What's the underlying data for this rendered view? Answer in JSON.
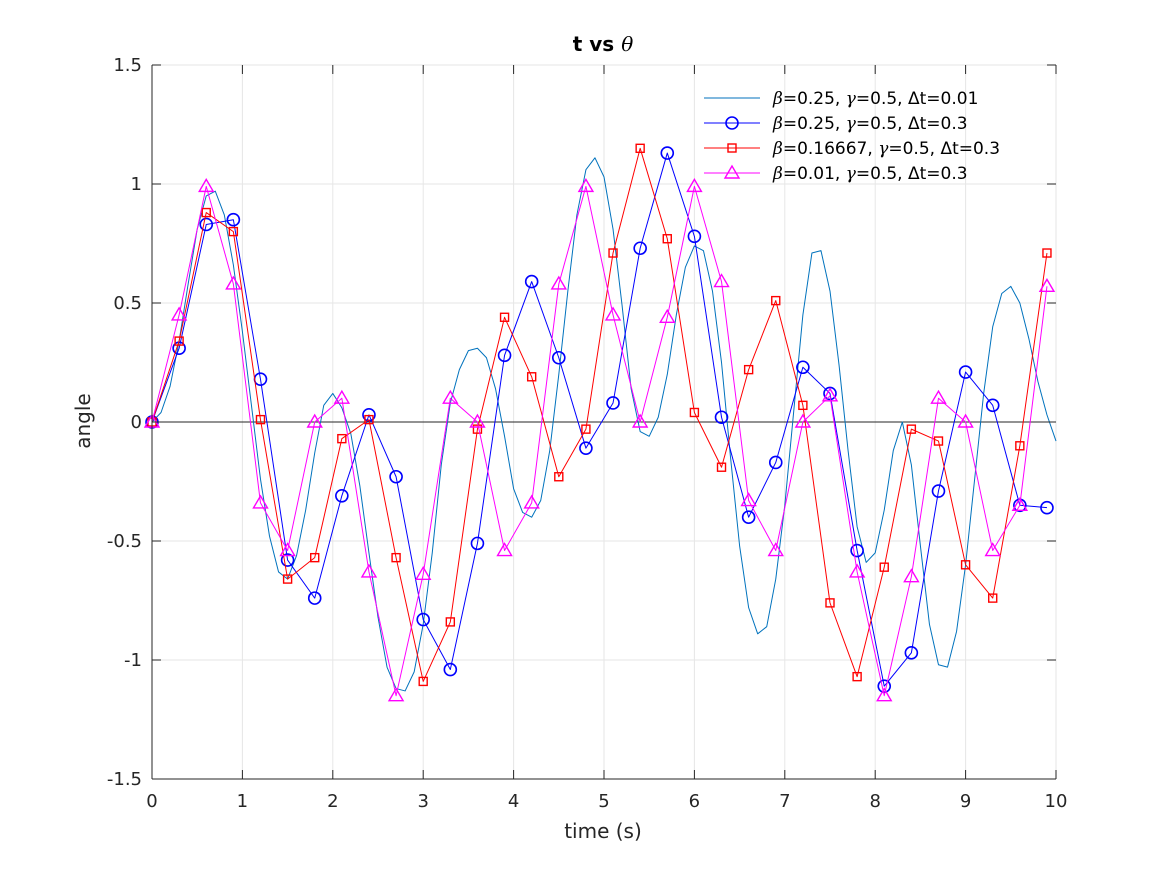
{
  "chart_data": {
    "type": "line",
    "title": "t vs θ",
    "title_parts": {
      "main": "t vs ",
      "symbol": "θ"
    },
    "xlabel": "time (s)",
    "ylabel": "angle",
    "xlim": [
      0,
      10
    ],
    "ylim": [
      -1.5,
      1.5
    ],
    "xticks": [
      0,
      1,
      2,
      3,
      4,
      5,
      6,
      7,
      8,
      9,
      10
    ],
    "xtick_labels": [
      "0",
      "1",
      "2",
      "3",
      "4",
      "5",
      "6",
      "7",
      "8",
      "9",
      "10"
    ],
    "yticks": [
      -1.5,
      -1,
      -0.5,
      0,
      0.5,
      1,
      1.5
    ],
    "ytick_labels": [
      "-1.5",
      "-1",
      "-0.5",
      "0",
      "0.5",
      "1",
      "1.5"
    ],
    "grid": true,
    "legend_position": "top-right",
    "zero_line": true,
    "series": [
      {
        "name": "β=0.25, γ=0.5, Δt=0.01",
        "legend_parts": [
          {
            "sym": "β"
          },
          {
            "txt": "=0.25, "
          },
          {
            "sym": "γ"
          },
          {
            "txt": "=0.5, "
          },
          {
            "txt": "Δt=0.01"
          }
        ],
        "color": "#0072BD",
        "marker": "none",
        "line_width": 1,
        "x": [
          0,
          0.1,
          0.2,
          0.3,
          0.4,
          0.5,
          0.6,
          0.7,
          0.8,
          0.9,
          1.0,
          1.1,
          1.2,
          1.3,
          1.4,
          1.5,
          1.6,
          1.7,
          1.8,
          1.9,
          2.0,
          2.1,
          2.2,
          2.3,
          2.4,
          2.5,
          2.6,
          2.7,
          2.8,
          2.9,
          3.0,
          3.1,
          3.2,
          3.3,
          3.4,
          3.5,
          3.6,
          3.7,
          3.8,
          3.9,
          4.0,
          4.1,
          4.2,
          4.3,
          4.4,
          4.5,
          4.6,
          4.7,
          4.8,
          4.9,
          5.0,
          5.1,
          5.2,
          5.3,
          5.4,
          5.5,
          5.6,
          5.7,
          5.8,
          5.9,
          6.0,
          6.1,
          6.2,
          6.3,
          6.4,
          6.5,
          6.6,
          6.7,
          6.8,
          6.9,
          7.0,
          7.1,
          7.2,
          7.3,
          7.4,
          7.5,
          7.6,
          7.7,
          7.8,
          7.9,
          8.0,
          8.1,
          8.2,
          8.3,
          8.4,
          8.5,
          8.6,
          8.7,
          8.8,
          8.9,
          9.0,
          9.1,
          9.2,
          9.3,
          9.4,
          9.5,
          9.6,
          9.7,
          9.8,
          9.9,
          10.0
        ],
        "y": [
          0,
          0.04,
          0.15,
          0.34,
          0.58,
          0.81,
          0.95,
          0.97,
          0.87,
          0.66,
          0.38,
          0.07,
          -0.24,
          -0.48,
          -0.63,
          -0.66,
          -0.56,
          -0.37,
          -0.13,
          0.07,
          0.12,
          0.06,
          -0.05,
          -0.27,
          -0.55,
          -0.82,
          -1.03,
          -1.12,
          -1.13,
          -1.05,
          -0.85,
          -0.55,
          -0.18,
          0.08,
          0.22,
          0.3,
          0.31,
          0.27,
          0.14,
          -0.06,
          -0.28,
          -0.38,
          -0.4,
          -0.33,
          -0.12,
          0.2,
          0.55,
          0.87,
          1.06,
          1.11,
          1.03,
          0.81,
          0.49,
          0.14,
          -0.04,
          -0.06,
          0.02,
          0.2,
          0.45,
          0.65,
          0.74,
          0.72,
          0.55,
          0.25,
          -0.15,
          -0.52,
          -0.78,
          -0.89,
          -0.86,
          -0.66,
          -0.35,
          0.05,
          0.45,
          0.71,
          0.72,
          0.55,
          0.24,
          -0.12,
          -0.44,
          -0.59,
          -0.55,
          -0.37,
          -0.12,
          0.0,
          -0.18,
          -0.52,
          -0.85,
          -1.02,
          -1.03,
          -0.88,
          -0.6,
          -0.24,
          0.12,
          0.4,
          0.54,
          0.57,
          0.5,
          0.35,
          0.17,
          0.03,
          -0.08
        ]
      },
      {
        "name": "β=0.25, γ=0.5, Δt=0.3",
        "legend_parts": [
          {
            "sym": "β"
          },
          {
            "txt": "=0.25, "
          },
          {
            "sym": "γ"
          },
          {
            "txt": "=0.5, "
          },
          {
            "txt": "Δt=0.3"
          }
        ],
        "color": "#0000FF",
        "marker": "circle",
        "line_width": 1,
        "x": [
          0,
          0.3,
          0.6,
          0.9,
          1.2,
          1.5,
          1.8,
          2.1,
          2.4,
          2.7,
          3.0,
          3.3,
          3.6,
          3.9,
          4.2,
          4.5,
          4.8,
          5.1,
          5.4,
          5.7,
          6.0,
          6.3,
          6.6,
          6.9,
          7.2,
          7.5,
          7.8,
          8.1,
          8.4,
          8.7,
          9.0,
          9.3,
          9.6,
          9.9
        ],
        "y": [
          0,
          0.31,
          0.83,
          0.85,
          0.18,
          -0.58,
          -0.74,
          -0.31,
          0.03,
          -0.23,
          -0.83,
          -1.04,
          -0.51,
          0.28,
          0.59,
          0.27,
          -0.11,
          0.08,
          0.73,
          1.13,
          0.78,
          0.02,
          -0.4,
          -0.17,
          0.23,
          0.12,
          -0.54,
          -1.11,
          -0.97,
          -0.29,
          0.21,
          0.07,
          -0.35,
          -0.36
        ]
      },
      {
        "name": "β=0.16667, γ=0.5, Δt=0.3",
        "legend_parts": [
          {
            "sym": "β"
          },
          {
            "txt": "=0.16667, "
          },
          {
            "sym": "γ"
          },
          {
            "txt": "=0.5, "
          },
          {
            "txt": "Δt=0.3"
          }
        ],
        "color": "#FF0000",
        "marker": "square",
        "line_width": 1,
        "x": [
          0,
          0.3,
          0.6,
          0.9,
          1.2,
          1.5,
          1.8,
          2.1,
          2.4,
          2.7,
          3.0,
          3.3,
          3.6,
          3.9,
          4.2,
          4.5,
          4.8,
          5.1,
          5.4,
          5.7,
          6.0,
          6.3,
          6.6,
          6.9,
          7.2,
          7.5,
          7.8,
          8.1,
          8.4,
          8.7,
          9.0,
          9.3,
          9.6,
          9.9
        ],
        "y": [
          0,
          0.34,
          0.88,
          0.8,
          0.01,
          -0.66,
          -0.57,
          -0.07,
          0.01,
          -0.57,
          -1.09,
          -0.84,
          -0.03,
          0.44,
          0.19,
          -0.23,
          -0.03,
          0.71,
          1.15,
          0.77,
          0.04,
          -0.19,
          0.22,
          0.51,
          0.07,
          -0.76,
          -1.07,
          -0.61,
          -0.03,
          -0.08,
          -0.6,
          -0.74,
          -0.1,
          0.71
        ]
      },
      {
        "name": "β=0.01, γ=0.5, Δt=0.3",
        "legend_parts": [
          {
            "sym": "β"
          },
          {
            "txt": "=0.01, "
          },
          {
            "sym": "γ"
          },
          {
            "txt": "=0.5, "
          },
          {
            "txt": "Δt=0.3"
          }
        ],
        "color": "#FF00FF",
        "marker": "triangle",
        "line_width": 1,
        "x": [
          0,
          0.3,
          0.6,
          0.9,
          1.2,
          1.5,
          1.8,
          2.1,
          2.4,
          2.7,
          3.0,
          3.3,
          3.6,
          3.9,
          4.2,
          4.5,
          4.8,
          5.1,
          5.4,
          5.7,
          6.0,
          6.3,
          6.6,
          6.9,
          7.2,
          7.5,
          7.8,
          8.1,
          8.4,
          8.7,
          9.0,
          9.3,
          9.6,
          9.9
        ],
        "y": [
          0,
          0.45,
          0.99,
          0.58,
          -0.34,
          -0.54,
          0.0,
          0.1,
          -0.63,
          -1.15,
          -0.64,
          0.1,
          0.0,
          -0.54,
          -0.34,
          0.58,
          0.99,
          0.45,
          0.0,
          0.44,
          0.99,
          0.59,
          -0.33,
          -0.54,
          0.0,
          0.11,
          -0.63,
          -1.15,
          -0.65,
          0.1,
          0.0,
          -0.54,
          -0.35,
          0.57
        ]
      }
    ]
  }
}
